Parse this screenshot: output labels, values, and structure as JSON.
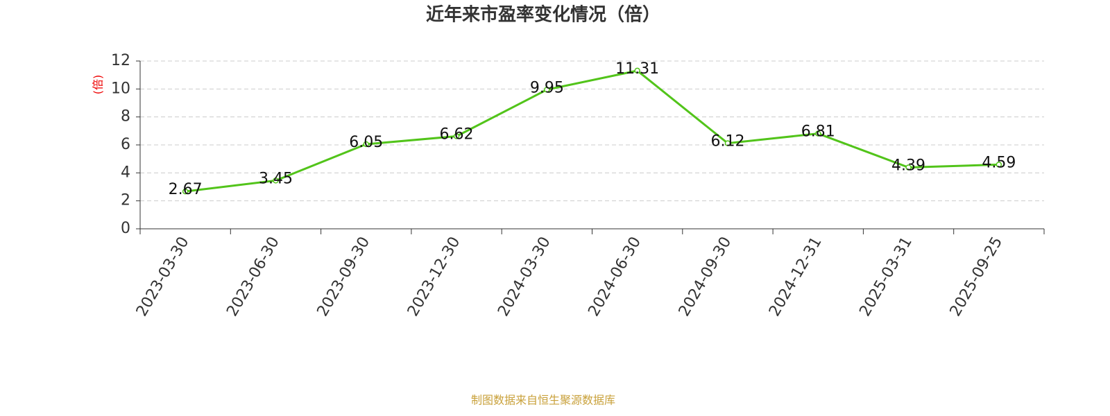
{
  "chart_data": {
    "type": "line",
    "title": "近年来市盈率变化情况（倍）",
    "y_label": "(倍)",
    "source": "制图数据来自恒生聚源数据库",
    "categories": [
      "2023-03-30",
      "2023-06-30",
      "2023-09-30",
      "2023-12-30",
      "2024-03-30",
      "2024-06-30",
      "2024-09-30",
      "2024-12-31",
      "2025-03-31",
      "2025-09-25"
    ],
    "values": [
      2.67,
      3.45,
      6.05,
      6.62,
      9.95,
      11.31,
      6.12,
      6.81,
      4.39,
      4.59
    ],
    "color": "#52c41a",
    "ylim": [
      0,
      12
    ],
    "yticks": [
      0,
      2,
      4,
      6,
      8,
      10,
      12
    ],
    "grid": true
  }
}
